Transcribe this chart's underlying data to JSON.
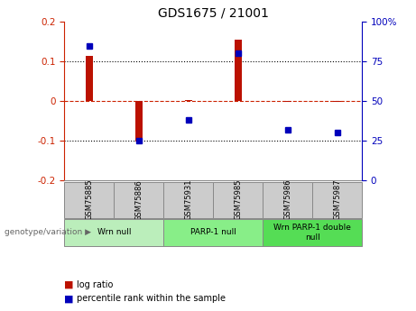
{
  "title": "GDS1675 / 21001",
  "samples": [
    "GSM75885",
    "GSM75886",
    "GSM75931",
    "GSM75985",
    "GSM75986",
    "GSM75987"
  ],
  "log_ratios": [
    0.115,
    -0.103,
    0.003,
    0.155,
    -0.003,
    -0.003
  ],
  "percentile_ranks": [
    85,
    25,
    38,
    80,
    32,
    30
  ],
  "ylim_left": [
    -0.2,
    0.2
  ],
  "ylim_right": [
    0,
    100
  ],
  "yticks_left": [
    -0.2,
    -0.1,
    0.0,
    0.1,
    0.2
  ],
  "yticks_right": [
    0,
    25,
    50,
    75,
    100
  ],
  "groups": [
    {
      "label": "Wrn null",
      "start": 0,
      "end": 2,
      "color": "#bbeebb"
    },
    {
      "label": "PARP-1 null",
      "start": 2,
      "end": 4,
      "color": "#88ee88"
    },
    {
      "label": "Wrn PARP-1 double\nnull",
      "start": 4,
      "end": 6,
      "color": "#55dd55"
    }
  ],
  "bar_color": "#bb1100",
  "dot_color": "#0000bb",
  "zero_line_color": "#cc2200",
  "sample_box_color": "#cccccc",
  "sample_box_edge": "#888888",
  "left_axis_color": "#cc2200",
  "right_axis_color": "#0000bb",
  "genotype_label": "genotype/variation",
  "legend_log_ratio": "log ratio",
  "legend_percentile": "percentile rank within the sample"
}
